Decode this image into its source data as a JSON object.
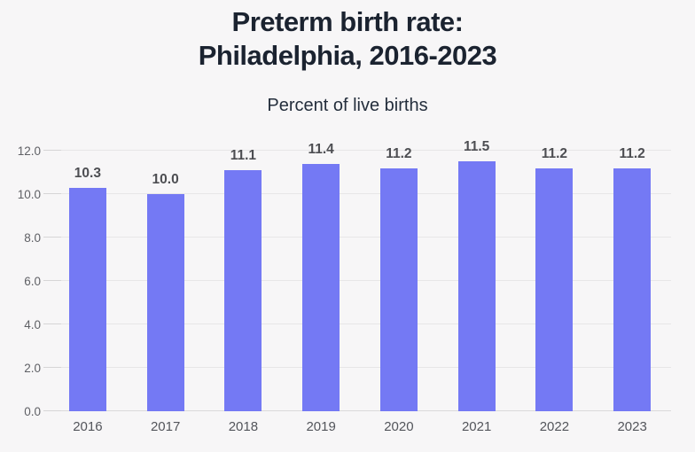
{
  "page": {
    "background": "#f7f6f7"
  },
  "chart_data": {
    "type": "bar",
    "title": "Preterm birth rate: Philadelphia, 2016-2023",
    "title_lines": [
      "Preterm birth rate:",
      "Philadelphia, 2016-2023"
    ],
    "subtitle": "Percent of live births",
    "categories": [
      "2016",
      "2017",
      "2018",
      "2019",
      "2020",
      "2021",
      "2022",
      "2023"
    ],
    "values": [
      10.3,
      10.0,
      11.1,
      11.4,
      11.2,
      11.5,
      11.2,
      11.2
    ],
    "value_labels": [
      "10.3",
      "10.0",
      "11.1",
      "11.4",
      "11.2",
      "11.5",
      "11.2",
      "11.2"
    ],
    "xlabel": "",
    "ylabel": "Percent of live births",
    "ylim": [
      0,
      12
    ],
    "y_ticks": [
      {
        "value": 0,
        "label": "0.0"
      },
      {
        "value": 2,
        "label": "2.0"
      },
      {
        "value": 4,
        "label": "4.0"
      },
      {
        "value": 6,
        "label": "6.0"
      },
      {
        "value": 8,
        "label": "8.0"
      },
      {
        "value": 10,
        "label": "10.0"
      },
      {
        "value": 12,
        "label": "12.0"
      }
    ],
    "grid": "horizontal",
    "legend": "none",
    "bar_color": "#7479f4",
    "value_label_color": "#4d4e52",
    "title_color": "#1b2330"
  }
}
